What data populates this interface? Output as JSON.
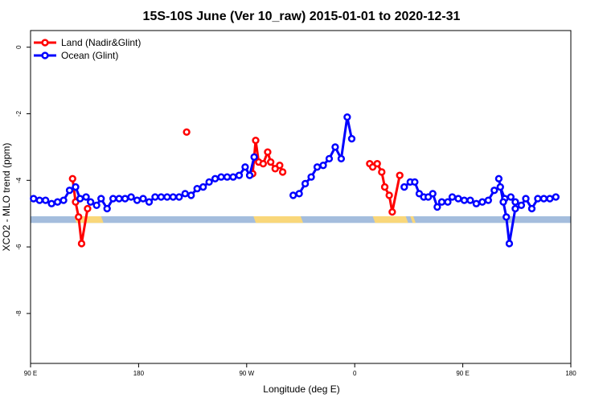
{
  "chart_data": {
    "type": "line",
    "title": "15S-10S June (Ver 10_raw)   2015-01-01 to 2020-12-31",
    "xlabel": "Longitude (deg E)",
    "ylabel": "XCO2 - MLO trend (ppm)",
    "xlim": [
      90,
      450
    ],
    "ylim": [
      -9.5,
      0.5
    ],
    "x_ticks": [
      {
        "value": 90,
        "label": "90 E"
      },
      {
        "value": 162,
        "label": "180"
      },
      {
        "value": 234,
        "label": "90 W"
      },
      {
        "value": 306,
        "label": "0"
      },
      {
        "value": 378,
        "label": "90 E"
      },
      {
        "value": 450,
        "label": "180"
      }
    ],
    "y_ticks": [
      {
        "value": 0,
        "label": "0"
      },
      {
        "value": -2,
        "label": "-2"
      },
      {
        "value": -4,
        "label": "-4"
      },
      {
        "value": -6,
        "label": "-6"
      },
      {
        "value": -8,
        "label": "-8"
      }
    ],
    "grid": false,
    "legend": "top-left",
    "surface_band": {
      "y_top": -5.08,
      "y_bottom": -5.28,
      "ocean_color": "#a4bddd",
      "land_color": "#f9d77a",
      "land_segments": [
        [
          119,
          137
        ],
        [
          238.5,
          270
        ],
        [
          318,
          340
        ],
        [
          343,
          345
        ]
      ]
    },
    "series": [
      {
        "name": "Land (Nadir&Glint)",
        "color": "#ff0000",
        "segments": [
          [
            [
              118,
              -3.95
            ],
            [
              120,
              -4.65
            ],
            [
              122,
              -5.1
            ],
            [
              124,
              -5.9
            ],
            [
              128,
              -4.85
            ]
          ],
          [
            [
              194,
              -2.55
            ]
          ],
          [
            [
              238,
              -3.8
            ],
            [
              240,
              -2.8
            ],
            [
              242,
              -3.45
            ],
            [
              245,
              -3.5
            ],
            [
              248,
              -3.15
            ],
            [
              250,
              -3.45
            ],
            [
              253,
              -3.65
            ],
            [
              256,
              -3.55
            ],
            [
              258,
              -3.75
            ]
          ],
          [
            [
              316,
              -3.5
            ],
            [
              318,
              -3.6
            ],
            [
              321,
              -3.5
            ],
            [
              324,
              -3.75
            ],
            [
              326,
              -4.2
            ],
            [
              329,
              -4.45
            ],
            [
              331,
              -4.95
            ],
            [
              336,
              -3.85
            ]
          ]
        ]
      },
      {
        "name": "Ocean (Glint)",
        "color": "#0000ff",
        "segments": [
          [
            [
              92,
              -4.55
            ],
            [
              96,
              -4.6
            ],
            [
              100,
              -4.6
            ],
            [
              104,
              -4.7
            ],
            [
              108,
              -4.65
            ],
            [
              112,
              -4.6
            ],
            [
              116,
              -4.3
            ],
            [
              120,
              -4.2
            ],
            [
              123,
              -4.55
            ],
            [
              127,
              -4.5
            ],
            [
              130,
              -4.65
            ],
            [
              134,
              -4.75
            ],
            [
              137,
              -4.55
            ],
            [
              141,
              -4.85
            ],
            [
              145,
              -4.55
            ],
            [
              149,
              -4.55
            ],
            [
              153,
              -4.55
            ],
            [
              157,
              -4.5
            ],
            [
              161,
              -4.6
            ],
            [
              165,
              -4.55
            ],
            [
              169,
              -4.65
            ],
            [
              173,
              -4.5
            ],
            [
              177,
              -4.5
            ],
            [
              181,
              -4.5
            ],
            [
              185,
              -4.5
            ],
            [
              189,
              -4.5
            ],
            [
              193,
              -4.4
            ],
            [
              197,
              -4.45
            ],
            [
              201,
              -4.25
            ],
            [
              205,
              -4.2
            ],
            [
              209,
              -4.05
            ],
            [
              213,
              -3.95
            ],
            [
              217,
              -3.9
            ],
            [
              221,
              -3.9
            ],
            [
              225,
              -3.9
            ],
            [
              229,
              -3.85
            ],
            [
              233,
              -3.6
            ],
            [
              236,
              -3.85
            ],
            [
              239,
              -3.3
            ]
          ],
          [
            [
              265,
              -4.45
            ],
            [
              269,
              -4.4
            ],
            [
              273,
              -4.1
            ],
            [
              277,
              -3.9
            ],
            [
              281,
              -3.6
            ],
            [
              285,
              -3.55
            ],
            [
              289,
              -3.35
            ],
            [
              293,
              -3.0
            ],
            [
              297,
              -3.35
            ],
            [
              301,
              -2.1
            ],
            [
              304,
              -2.75
            ]
          ],
          [
            [
              339,
              -4.2
            ],
            [
              343,
              -4.05
            ],
            [
              346,
              -4.05
            ],
            [
              349,
              -4.4
            ],
            [
              352,
              -4.5
            ],
            [
              355,
              -4.5
            ],
            [
              358,
              -4.4
            ],
            [
              361,
              -4.8
            ],
            [
              364,
              -4.65
            ],
            [
              368,
              -4.65
            ],
            [
              371,
              -4.5
            ],
            [
              375,
              -4.55
            ],
            [
              379,
              -4.6
            ],
            [
              383,
              -4.6
            ],
            [
              387,
              -4.7
            ],
            [
              391,
              -4.65
            ],
            [
              395,
              -4.6
            ],
            [
              399,
              -4.3
            ],
            [
              403,
              -4.2
            ],
            [
              406,
              -4.55
            ],
            [
              410,
              -4.5
            ],
            [
              413,
              -4.65
            ],
            [
              417,
              -4.75
            ],
            [
              420,
              -4.55
            ],
            [
              424,
              -4.85
            ],
            [
              428,
              -4.55
            ],
            [
              432,
              -4.55
            ],
            [
              436,
              -4.55
            ],
            [
              440,
              -4.5
            ]
          ],
          [
            [
              402,
              -3.95
            ],
            [
              405,
              -4.65
            ],
            [
              407,
              -5.1
            ],
            [
              409,
              -5.9
            ],
            [
              413,
              -4.85
            ]
          ]
        ]
      }
    ]
  }
}
